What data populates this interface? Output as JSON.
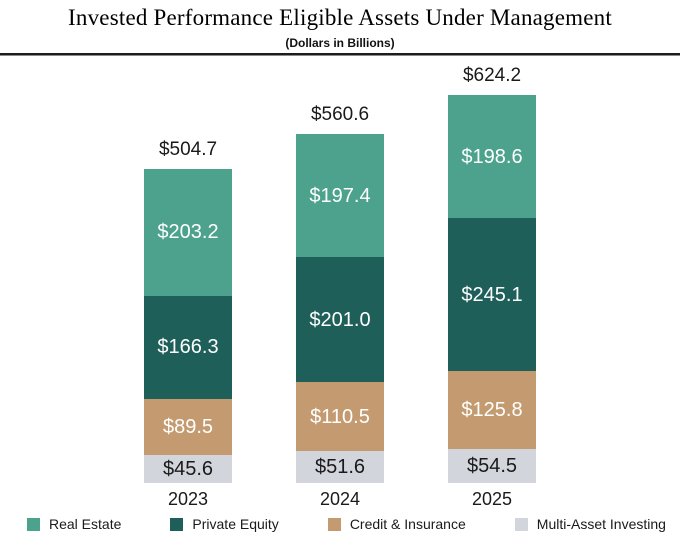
{
  "header": {
    "title": "Invested Performance Eligible Assets Under Management",
    "subtitle": "(Dollars in Billions)"
  },
  "chart_data": {
    "type": "bar",
    "stacked": true,
    "value_prefix": "$",
    "categories": [
      "2023",
      "2024",
      "2025"
    ],
    "series": [
      {
        "name": "Real Estate",
        "color": "#4CA28C",
        "label_color": "#ffffff",
        "values": [
          203.2,
          197.4,
          198.6
        ]
      },
      {
        "name": "Private Equity",
        "color": "#1E5F5A",
        "label_color": "#ffffff",
        "values": [
          166.3,
          201.0,
          245.1
        ]
      },
      {
        "name": "Credit & Insurance",
        "color": "#C49B70",
        "label_color": "#ffffff",
        "values": [
          89.5,
          110.5,
          125.8
        ]
      },
      {
        "name": "Multi-Asset Investing",
        "color": "#D2D5DB",
        "label_color": "#1a1a1a",
        "values": [
          45.6,
          51.6,
          54.5
        ]
      }
    ],
    "totals": [
      504.7,
      560.6,
      624.2
    ],
    "stack_order_top_to_bottom": [
      "Real Estate",
      "Private Equity",
      "Credit & Insurance",
      "Multi-Asset Investing"
    ],
    "legend_position": "bottom",
    "grid": false,
    "axes_shown": false
  }
}
